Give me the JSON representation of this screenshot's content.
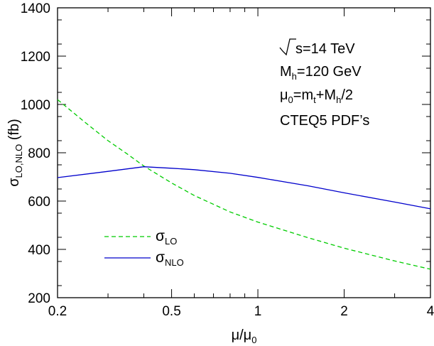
{
  "chart_data": {
    "type": "line",
    "x_scale": "log",
    "xlim": [
      0.2,
      4
    ],
    "ylim": [
      200,
      1400
    ],
    "x_ticks": [
      0.2,
      0.5,
      1,
      2,
      4
    ],
    "x_tick_labels": [
      "0.2",
      "0.5",
      "1",
      "2",
      "4"
    ],
    "y_ticks": [
      200,
      400,
      600,
      800,
      1000,
      1200,
      1400
    ],
    "y_tick_labels": [
      "200",
      "400",
      "600",
      "800",
      "1000",
      "1200",
      "1400"
    ],
    "xlabel": {
      "main": "μ/μ",
      "sub": "0"
    },
    "ylabel": {
      "main": "σ",
      "sub": "LO,NLO",
      "suffix": " (fb)"
    },
    "grid": false,
    "legend_position": "lower-left",
    "series": [
      {
        "name": {
          "main": "σ",
          "sub": "LO"
        },
        "color": "#00cc00",
        "style": "dashed",
        "x": [
          0.2,
          0.25,
          0.3,
          0.35,
          0.4,
          0.5,
          0.6,
          0.8,
          1.0,
          1.5,
          2.0,
          3.0,
          4.0
        ],
        "y": [
          1020,
          925,
          850,
          795,
          745,
          675,
          623,
          555,
          513,
          448,
          405,
          352,
          318
        ]
      },
      {
        "name": {
          "main": "σ",
          "sub": "NLO"
        },
        "color": "#0000cc",
        "style": "solid",
        "x": [
          0.2,
          0.3,
          0.4,
          0.5,
          0.6,
          0.8,
          1.0,
          1.5,
          2.0,
          3.0,
          4.0
        ],
        "y": [
          697,
          723,
          742,
          736,
          730,
          715,
          698,
          663,
          634,
          596,
          568
        ]
      }
    ],
    "annotations": [
      {
        "type": "sqrt",
        "text": "s=14 TeV"
      },
      {
        "parts": [
          {
            "t": "M"
          },
          {
            "t": "h",
            "sub": true
          },
          {
            "t": "=120 GeV"
          }
        ]
      },
      {
        "parts": [
          {
            "t": "μ"
          },
          {
            "t": "0",
            "sub": true
          },
          {
            "t": "=m"
          },
          {
            "t": "t",
            "sub": true
          },
          {
            "t": "+M"
          },
          {
            "t": "h",
            "sub": true
          },
          {
            "t": "/2"
          }
        ]
      },
      {
        "parts": [
          {
            "t": "CTEQ5 PDF’s"
          }
        ]
      }
    ]
  }
}
